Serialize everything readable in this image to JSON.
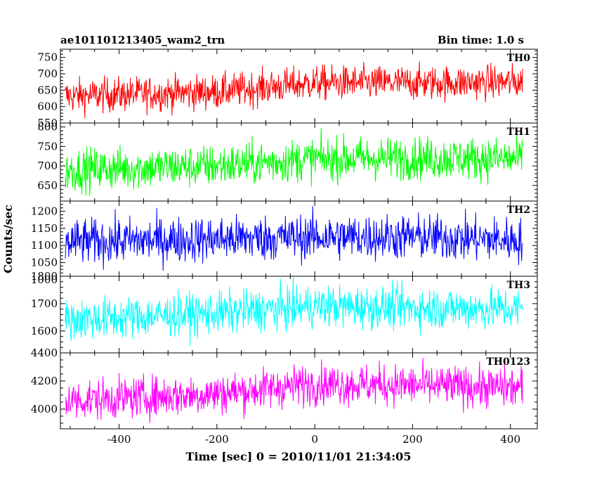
{
  "chart_data": {
    "type": "line",
    "title_left": "ae101101213405_wam2_trn",
    "title_right": "Bin time: 1.0 s",
    "xlabel": "Time [sec] 0 = 2010/11/01 21:34:05",
    "ylabel": "Counts/sec",
    "xlim": [
      -520,
      455
    ],
    "xticks": [
      -400,
      -200,
      0,
      200,
      400
    ],
    "x_range": [
      -510,
      425
    ],
    "grid": false,
    "panels": [
      {
        "name": "TH0",
        "color": "#ff0000",
        "ylim": [
          550,
          775
        ],
        "yticks": [
          550,
          600,
          650,
          700,
          750
        ],
        "trend": [
          [
            -510,
            632
          ],
          [
            -200,
            645
          ],
          [
            0,
            672
          ],
          [
            200,
            672
          ],
          [
            425,
            675
          ]
        ],
        "noise": 26
      },
      {
        "name": "TH1",
        "color": "#00ff00",
        "ylim": [
          610,
          810
        ],
        "yticks": [
          650,
          700,
          750,
          800
        ],
        "trend": [
          [
            -510,
            690
          ],
          [
            -200,
            700
          ],
          [
            0,
            718
          ],
          [
            200,
            720
          ],
          [
            425,
            718
          ]
        ],
        "noise": 27
      },
      {
        "name": "TH2",
        "color": "#0000ff",
        "ylim": [
          1010,
          1230
        ],
        "yticks": [
          1000,
          1050,
          1100,
          1150,
          1200
        ],
        "trend": [
          [
            -510,
            1110
          ],
          [
            0,
            1125
          ],
          [
            200,
            1125
          ],
          [
            425,
            1115
          ]
        ],
        "noise": 33
      },
      {
        "name": "TH3",
        "color": "#00ffff",
        "ylim": [
          1520,
          1800
        ],
        "yticks": [
          1600,
          1700,
          1800
        ],
        "trend": [
          [
            -510,
            1640
          ],
          [
            -200,
            1665
          ],
          [
            0,
            1690
          ],
          [
            200,
            1685
          ],
          [
            425,
            1680
          ]
        ],
        "noise": 38
      },
      {
        "name": "TH0123",
        "color": "#ff00ff",
        "ylim": [
          3860,
          4400
        ],
        "yticks": [
          4000,
          4200,
          4400
        ],
        "trend": [
          [
            -510,
            4060
          ],
          [
            -200,
            4110
          ],
          [
            0,
            4180
          ],
          [
            200,
            4170
          ],
          [
            425,
            4150
          ]
        ],
        "noise": 72
      }
    ]
  }
}
